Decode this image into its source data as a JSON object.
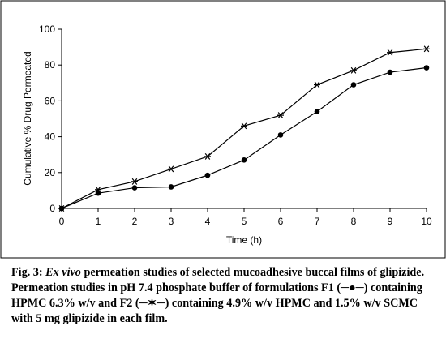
{
  "chart_data": {
    "type": "line",
    "x": [
      0,
      1,
      2,
      3,
      4,
      5,
      6,
      7,
      8,
      9,
      10
    ],
    "xticks": [
      "0",
      "1",
      "2",
      "3",
      "4",
      "5",
      "6",
      "7",
      "8",
      "9",
      "10"
    ],
    "yticks": [
      "0",
      "20",
      "40",
      "60",
      "80",
      "100"
    ],
    "xlim": [
      0,
      10
    ],
    "ylim": [
      0,
      100
    ],
    "xlabel": "Time (h)",
    "ylabel": "Cumulative % Drug Permeated",
    "legend": "none",
    "grid": false,
    "series": [
      {
        "name": "F1",
        "marker": "circle",
        "color": "#000000",
        "values": [
          0,
          8.5,
          11.5,
          12,
          18.5,
          27,
          41,
          54,
          69,
          76,
          78.5
        ]
      },
      {
        "name": "F2",
        "marker": "star",
        "color": "#000000",
        "values": [
          0,
          10.5,
          15,
          22,
          29,
          46,
          52,
          69,
          77,
          87,
          89
        ]
      }
    ]
  },
  "caption": {
    "fig_label": "Fig. 3:",
    "fig_italic": "Ex vivo",
    "fig_rest": "permeation studies of selected mucoadhesive buccal films of glipizide.",
    "line2": "Permeation studies in pH 7.4 phosphate buffer of formulations F1 (─●─) containing HPMC 6.3% w/v and F2 (─✶─) containing 4.9% w/v HPMC and 1.5% w/v SCMC with 5 mg glipizide in each film."
  }
}
